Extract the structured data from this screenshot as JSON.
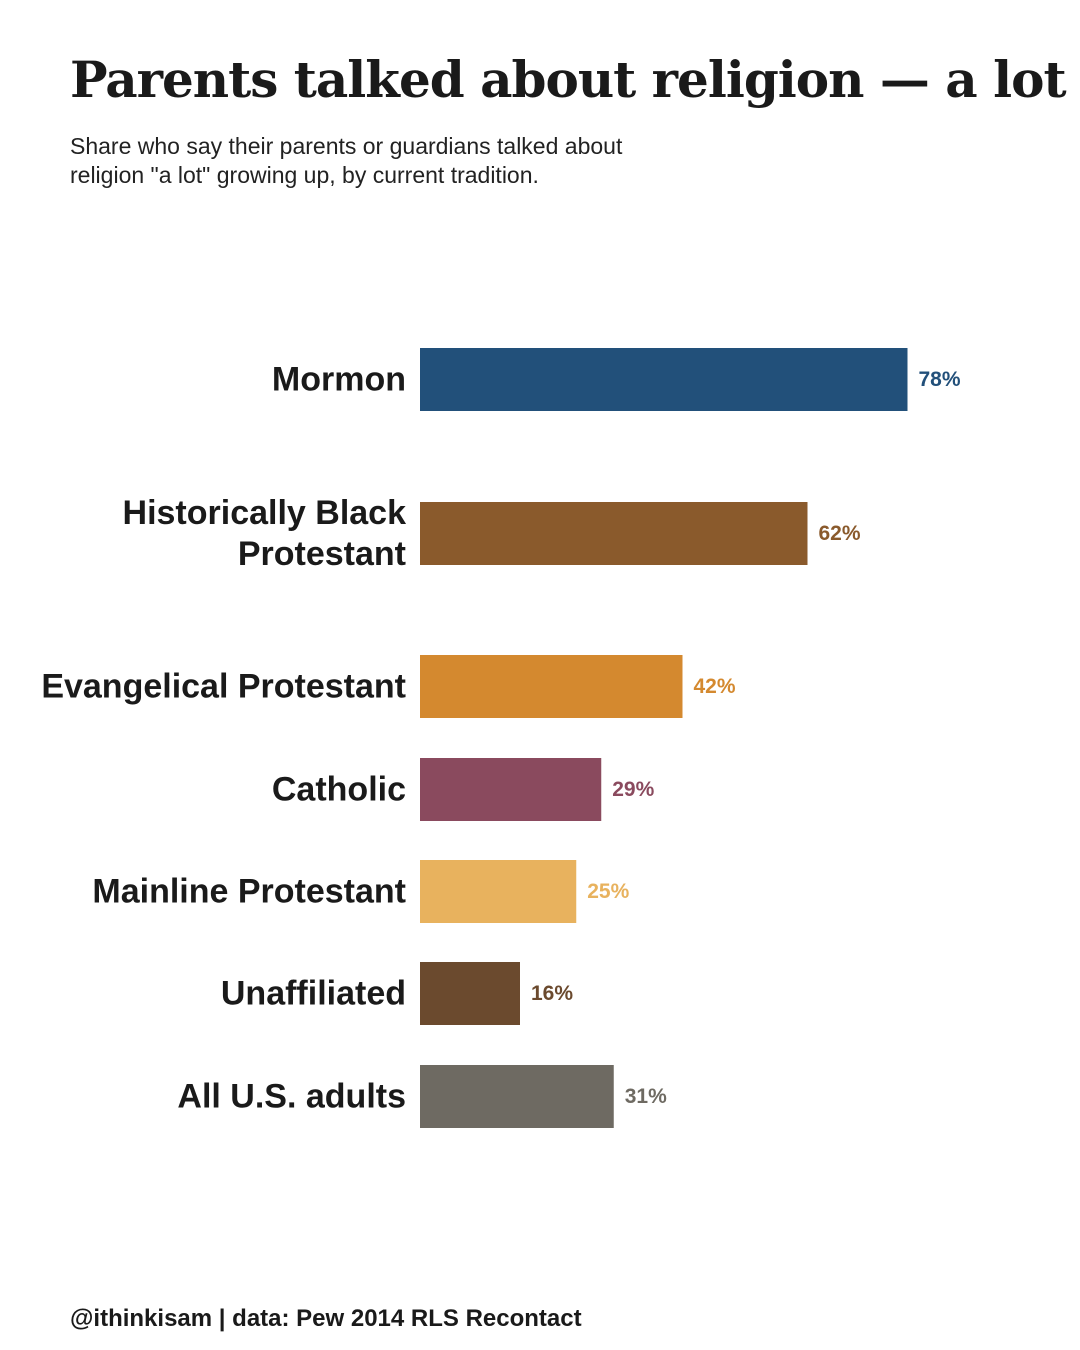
{
  "chart_data": {
    "type": "bar",
    "orientation": "horizontal",
    "title": "Parents talked about religion — a lot",
    "subtitle": "Share who say their parents or guardians talked about religion \"a lot\" growing up, by current tradition.",
    "categories": [
      [
        "Mormon"
      ],
      [
        "Historically Black",
        "Protestant"
      ],
      [
        "Evangelical Protestant"
      ],
      [
        "Catholic"
      ],
      [
        "Mainline Protestant"
      ],
      [
        "Unaffiliated"
      ],
      [
        "All U.S. adults"
      ]
    ],
    "values": [
      78,
      62,
      42,
      29,
      25,
      16,
      31
    ],
    "value_labels": [
      "78%",
      "62%",
      "42%",
      "29%",
      "25%",
      "16%",
      "31%"
    ],
    "colors": [
      "#22507a",
      "#8a5a2c",
      "#d4892f",
      "#8a4a5e",
      "#e8b25e",
      "#6b4a2e",
      "#6e6a62"
    ],
    "xlim": [
      0,
      100
    ],
    "grid": false,
    "legend": "none"
  },
  "footer": "@ithinkisam | data: Pew 2014 RLS Recontact"
}
